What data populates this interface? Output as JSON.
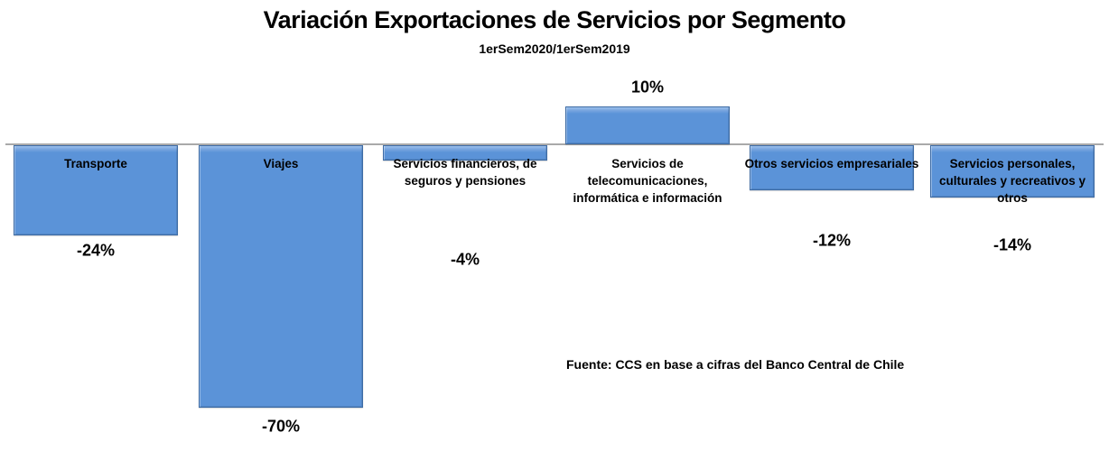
{
  "page": {
    "background": "#ffffff"
  },
  "chart_data": {
    "type": "bar",
    "title": "Variación Exportaciones de Servicios por Segmento",
    "subtitle": "1erSem2020/1erSem2019",
    "source_note": "Fuente: CCS en base a cifras del Banco Central de Chile",
    "categories": [
      "Transporte",
      "Viajes",
      "Servicios financieros, de seguros y pensiones",
      "Servicios de telecomunicaciones, informática e información",
      "Otros servicios empresariales",
      "Servicios personales, culturales y recreativos y otros"
    ],
    "values": [
      -24,
      -70,
      -4,
      10,
      -12,
      -14
    ],
    "value_labels": [
      "-24%",
      "-70%",
      "-4%",
      "10%",
      "-12%",
      "-14%"
    ],
    "unit": "percent",
    "baseline": 0,
    "ylim": [
      -80,
      20
    ],
    "grid": false,
    "legend": false,
    "colors": {
      "bar_fill": "#5b93d8",
      "bar_fill_highlight": "#8ab4e6",
      "bar_border": "#3e6ca6",
      "axis_line": "#a9a9a9",
      "text": "#000000"
    }
  }
}
